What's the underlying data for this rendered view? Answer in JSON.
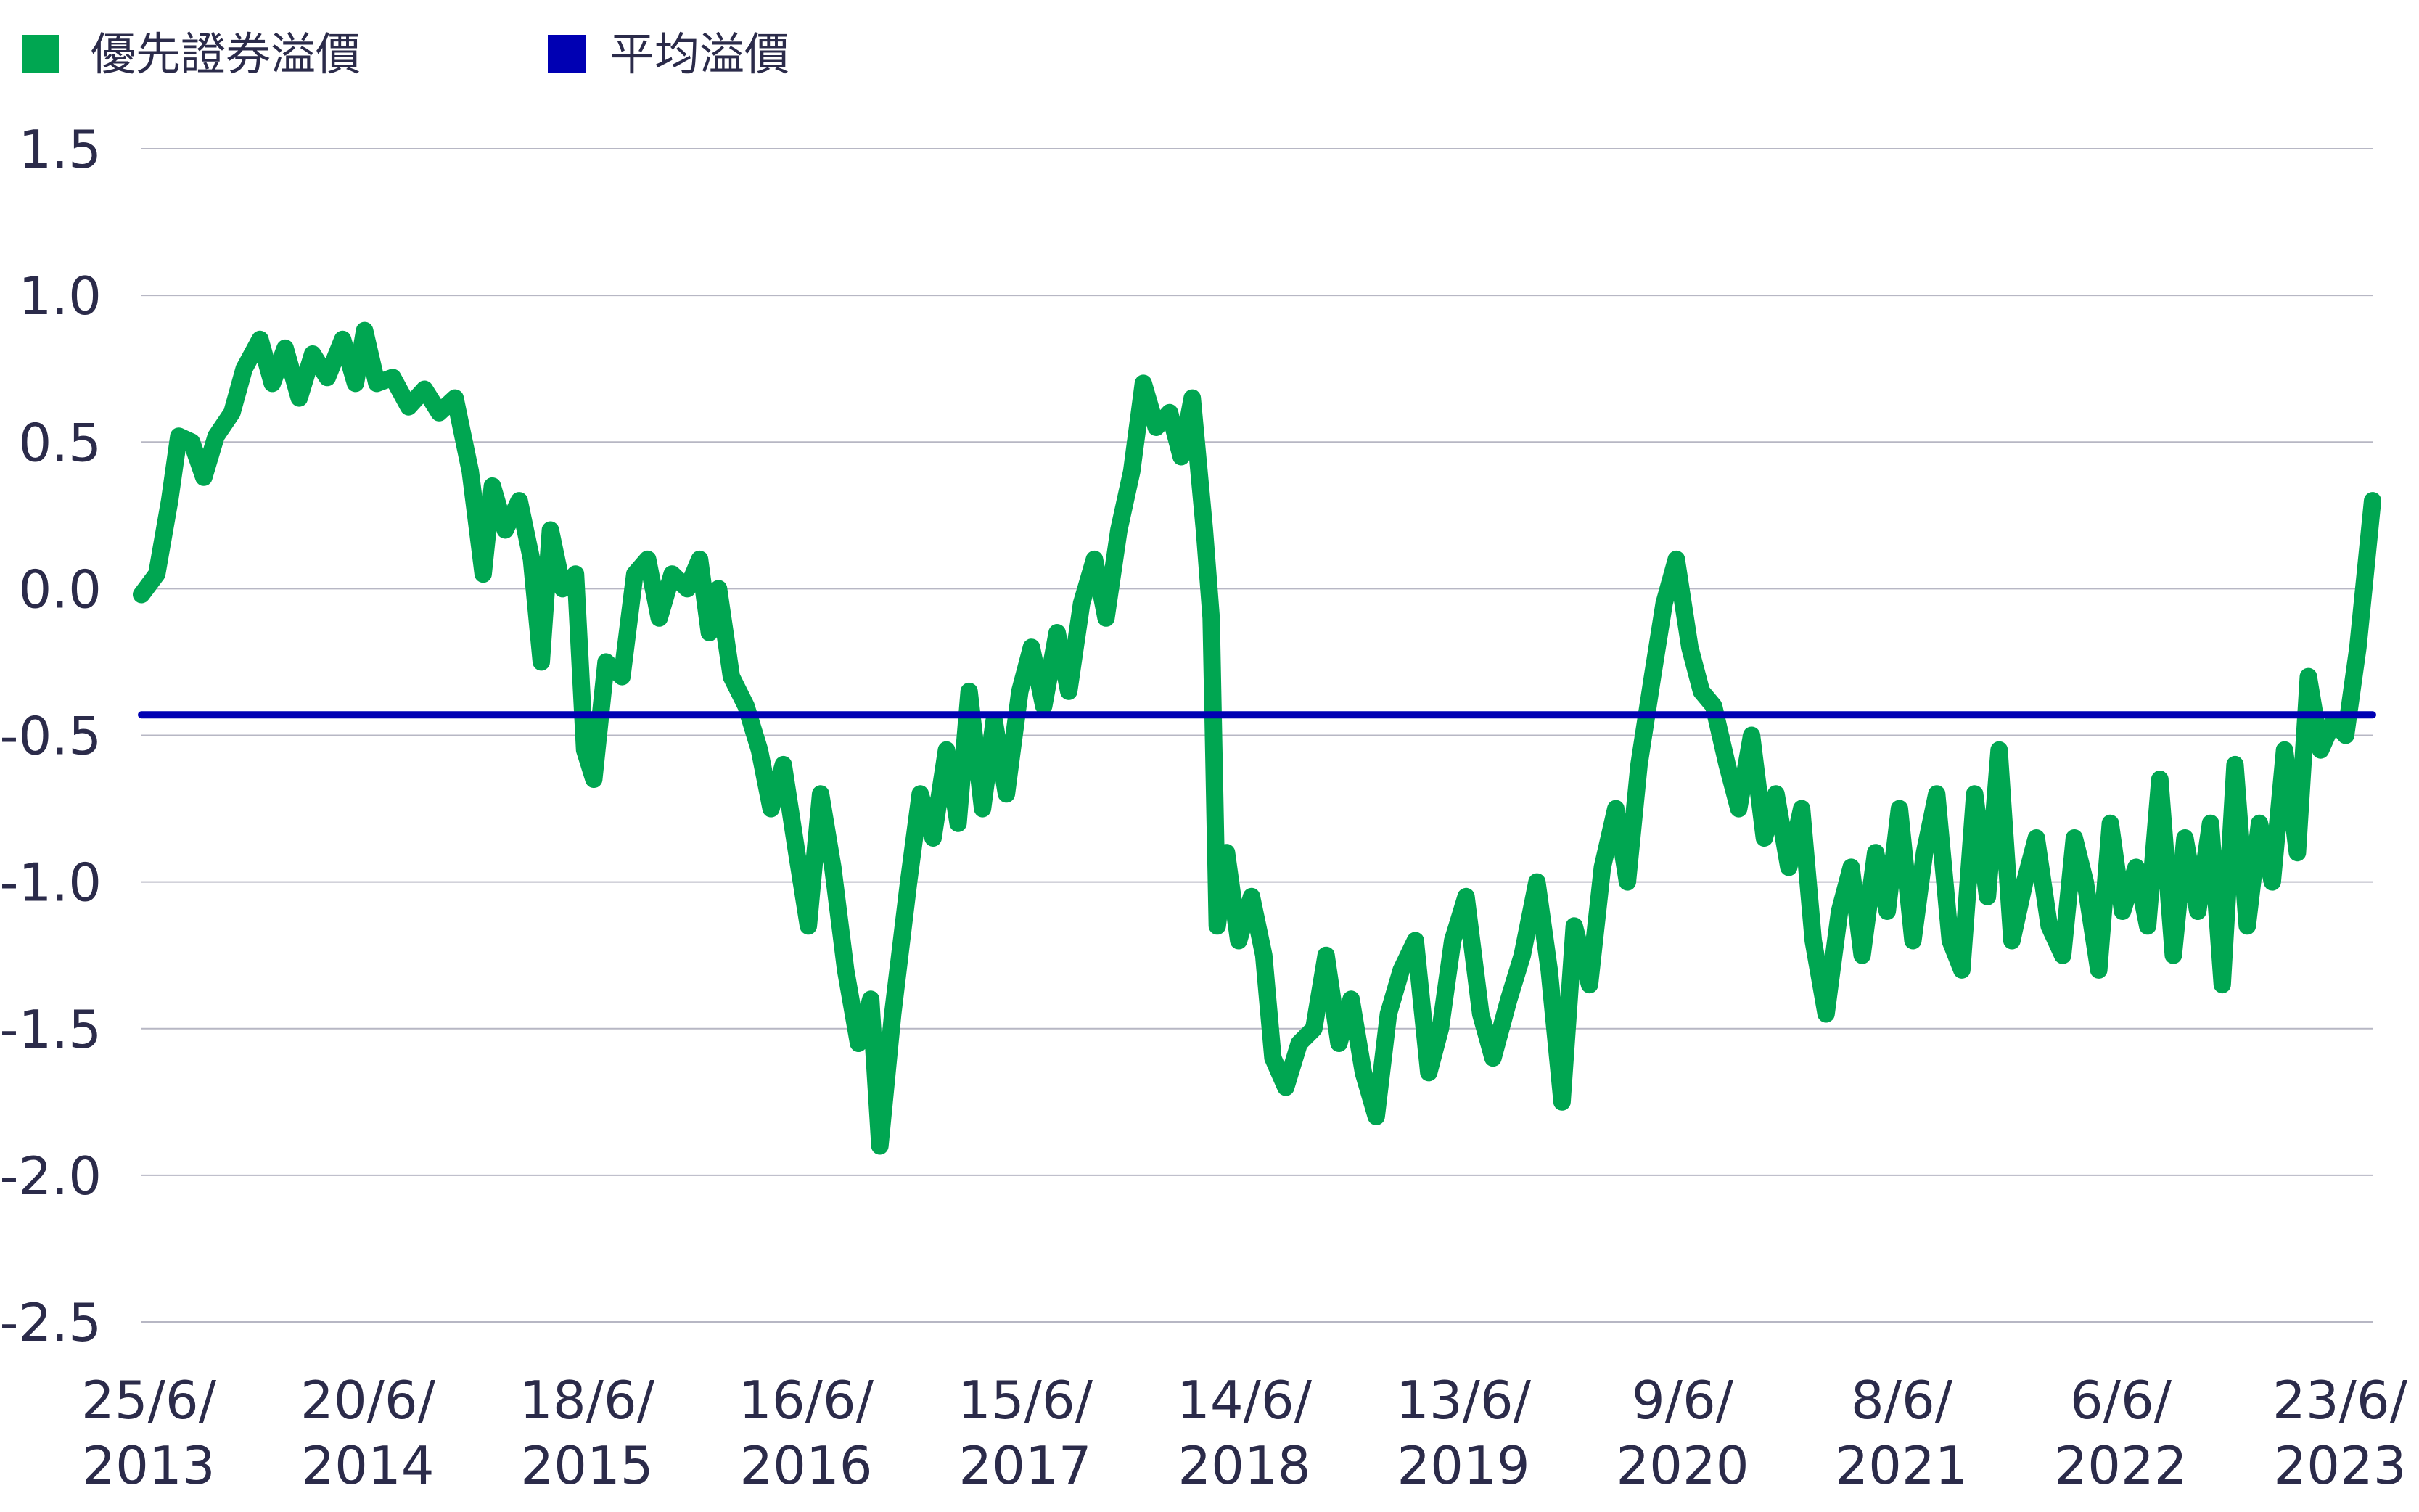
{
  "chart_data": {
    "type": "line",
    "title": "",
    "xlabel": "",
    "ylabel": "",
    "ylim": [
      -2.5,
      1.5
    ],
    "yticks": [
      "1.5",
      "1.0",
      "0.5",
      "0.0",
      "-0.5",
      "-1.0",
      "-1.5",
      "-2.0",
      "-2.5"
    ],
    "xticks": [
      {
        "line1": "25/6/",
        "line2": "2013"
      },
      {
        "line1": "20/6/",
        "line2": "2014"
      },
      {
        "line1": "18/6/",
        "line2": "2015"
      },
      {
        "line1": "16/6/",
        "line2": "2016"
      },
      {
        "line1": "15/6/",
        "line2": "2017"
      },
      {
        "line1": "14/6/",
        "line2": "2018"
      },
      {
        "line1": "13/6/",
        "line2": "2019"
      },
      {
        "line1": "9/6/",
        "line2": "2020"
      },
      {
        "line1": "8/6/",
        "line2": "2021"
      },
      {
        "line1": "6/6/",
        "line2": "2022"
      },
      {
        "line1": "23/6/",
        "line2": "2023"
      }
    ],
    "grid": true,
    "legend_position": "top-left",
    "series": [
      {
        "name": "優先證券溢價",
        "color": "#00a651",
        "points": [
          [
            "2013-06-25",
            -0.02
          ],
          [
            "2013-07-20",
            0.05
          ],
          [
            "2013-08-10",
            0.3
          ],
          [
            "2013-08-25",
            0.52
          ],
          [
            "2013-09-15",
            0.5
          ],
          [
            "2013-10-05",
            0.38
          ],
          [
            "2013-10-25",
            0.52
          ],
          [
            "2013-11-20",
            0.6
          ],
          [
            "2013-12-10",
            0.75
          ],
          [
            "2014-01-05",
            0.85
          ],
          [
            "2014-01-25",
            0.7
          ],
          [
            "2014-02-15",
            0.82
          ],
          [
            "2014-03-10",
            0.65
          ],
          [
            "2014-04-01",
            0.8
          ],
          [
            "2014-04-25",
            0.72
          ],
          [
            "2014-05-20",
            0.85
          ],
          [
            "2014-06-10",
            0.7
          ],
          [
            "2014-06-25",
            0.88
          ],
          [
            "2014-07-15",
            0.7
          ],
          [
            "2014-08-10",
            0.72
          ],
          [
            "2014-09-05",
            0.62
          ],
          [
            "2014-10-01",
            0.68
          ],
          [
            "2014-10-25",
            0.6
          ],
          [
            "2014-11-20",
            0.65
          ],
          [
            "2014-12-15",
            0.4
          ],
          [
            "2015-01-05",
            0.05
          ],
          [
            "2015-01-20",
            0.35
          ],
          [
            "2015-02-10",
            0.2
          ],
          [
            "2015-03-05",
            0.3
          ],
          [
            "2015-03-25",
            0.1
          ],
          [
            "2015-04-10",
            -0.25
          ],
          [
            "2015-04-25",
            0.2
          ],
          [
            "2015-05-15",
            0.0
          ],
          [
            "2015-06-05",
            0.05
          ],
          [
            "2015-06-20",
            -0.55
          ],
          [
            "2015-07-05",
            -0.65
          ],
          [
            "2015-07-25",
            -0.25
          ],
          [
            "2015-08-20",
            -0.3
          ],
          [
            "2015-09-10",
            0.05
          ],
          [
            "2015-10-01",
            0.1
          ],
          [
            "2015-10-20",
            -0.1
          ],
          [
            "2015-11-10",
            0.05
          ],
          [
            "2015-12-05",
            0.0
          ],
          [
            "2015-12-25",
            0.1
          ],
          [
            "2016-01-10",
            -0.15
          ],
          [
            "2016-01-25",
            0.0
          ],
          [
            "2016-02-15",
            -0.3
          ],
          [
            "2016-03-10",
            -0.4
          ],
          [
            "2016-04-01",
            -0.55
          ],
          [
            "2016-04-20",
            -0.75
          ],
          [
            "2016-05-10",
            -0.6
          ],
          [
            "2016-06-01",
            -0.9
          ],
          [
            "2016-06-20",
            -1.15
          ],
          [
            "2016-07-10",
            -0.7
          ],
          [
            "2016-07-30",
            -0.95
          ],
          [
            "2016-08-20",
            -1.3
          ],
          [
            "2016-09-10",
            -1.55
          ],
          [
            "2016-09-30",
            -1.4
          ],
          [
            "2016-10-15",
            -1.9
          ],
          [
            "2016-11-05",
            -1.45
          ],
          [
            "2016-12-01",
            -1.0
          ],
          [
            "2016-12-20",
            -0.7
          ],
          [
            "2017-01-10",
            -0.85
          ],
          [
            "2017-02-01",
            -0.55
          ],
          [
            "2017-02-20",
            -0.8
          ],
          [
            "2017-03-10",
            -0.35
          ],
          [
            "2017-04-01",
            -0.75
          ],
          [
            "2017-04-20",
            -0.45
          ],
          [
            "2017-05-10",
            -0.7
          ],
          [
            "2017-06-01",
            -0.35
          ],
          [
            "2017-06-20",
            -0.2
          ],
          [
            "2017-07-10",
            -0.4
          ],
          [
            "2017-08-01",
            -0.15
          ],
          [
            "2017-08-20",
            -0.35
          ],
          [
            "2017-09-10",
            -0.05
          ],
          [
            "2017-10-01",
            0.1
          ],
          [
            "2017-10-20",
            -0.1
          ],
          [
            "2017-11-10",
            0.2
          ],
          [
            "2017-12-01",
            0.4
          ],
          [
            "2017-12-20",
            0.7
          ],
          [
            "2018-01-10",
            0.55
          ],
          [
            "2018-02-01",
            0.6
          ],
          [
            "2018-02-20",
            0.45
          ],
          [
            "2018-03-10",
            0.65
          ],
          [
            "2018-03-30",
            0.2
          ],
          [
            "2018-04-10",
            -0.1
          ],
          [
            "2018-04-20",
            -1.15
          ],
          [
            "2018-05-05",
            -0.9
          ],
          [
            "2018-05-25",
            -1.2
          ],
          [
            "2018-06-15",
            -1.05
          ],
          [
            "2018-07-05",
            -1.25
          ],
          [
            "2018-07-20",
            -1.6
          ],
          [
            "2018-08-10",
            -1.7
          ],
          [
            "2018-09-01",
            -1.55
          ],
          [
            "2018-09-25",
            -1.5
          ],
          [
            "2018-10-15",
            -1.25
          ],
          [
            "2018-11-05",
            -1.55
          ],
          [
            "2018-11-25",
            -1.4
          ],
          [
            "2018-12-15",
            -1.65
          ],
          [
            "2019-01-05",
            -1.8
          ],
          [
            "2019-01-25",
            -1.45
          ],
          [
            "2019-02-15",
            -1.3
          ],
          [
            "2019-03-10",
            -1.2
          ],
          [
            "2019-04-01",
            -1.65
          ],
          [
            "2019-04-20",
            -1.5
          ],
          [
            "2019-05-10",
            -1.2
          ],
          [
            "2019-06-01",
            -1.05
          ],
          [
            "2019-06-25",
            -1.45
          ],
          [
            "2019-07-15",
            -1.6
          ],
          [
            "2019-08-10",
            -1.4
          ],
          [
            "2019-09-01",
            -1.25
          ],
          [
            "2019-09-25",
            -1.0
          ],
          [
            "2019-10-15",
            -1.3
          ],
          [
            "2019-11-05",
            -1.75
          ],
          [
            "2019-11-25",
            -1.15
          ],
          [
            "2019-12-20",
            -1.35
          ],
          [
            "2020-01-10",
            -0.95
          ],
          [
            "2020-02-01",
            -0.75
          ],
          [
            "2020-02-20",
            -1.0
          ],
          [
            "2020-03-10",
            -0.6
          ],
          [
            "2020-04-01",
            -0.3
          ],
          [
            "2020-04-20",
            -0.05
          ],
          [
            "2020-05-10",
            0.1
          ],
          [
            "2020-06-01",
            -0.2
          ],
          [
            "2020-06-20",
            -0.35
          ],
          [
            "2020-07-10",
            -0.4
          ],
          [
            "2020-08-01",
            -0.6
          ],
          [
            "2020-08-20",
            -0.75
          ],
          [
            "2020-09-10",
            -0.5
          ],
          [
            "2020-10-01",
            -0.85
          ],
          [
            "2020-10-20",
            -0.7
          ],
          [
            "2020-11-10",
            -0.95
          ],
          [
            "2020-12-01",
            -0.75
          ],
          [
            "2020-12-20",
            -1.2
          ],
          [
            "2021-01-10",
            -1.45
          ],
          [
            "2021-02-01",
            -1.1
          ],
          [
            "2021-02-20",
            -0.95
          ],
          [
            "2021-03-10",
            -1.25
          ],
          [
            "2021-04-01",
            -0.9
          ],
          [
            "2021-04-20",
            -1.1
          ],
          [
            "2021-05-10",
            -0.75
          ],
          [
            "2021-06-01",
            -1.2
          ],
          [
            "2021-06-20",
            -0.9
          ],
          [
            "2021-07-10",
            -0.7
          ],
          [
            "2021-08-01",
            -1.2
          ],
          [
            "2021-08-20",
            -1.3
          ],
          [
            "2021-09-10",
            -0.7
          ],
          [
            "2021-10-01",
            -1.05
          ],
          [
            "2021-10-20",
            -0.55
          ],
          [
            "2021-11-10",
            -1.2
          ],
          [
            "2021-12-01",
            -1.0
          ],
          [
            "2021-12-20",
            -0.85
          ],
          [
            "2022-01-10",
            -1.15
          ],
          [
            "2022-02-01",
            -1.25
          ],
          [
            "2022-02-20",
            -0.85
          ],
          [
            "2022-03-10",
            -1.0
          ],
          [
            "2022-04-01",
            -1.3
          ],
          [
            "2022-04-20",
            -0.8
          ],
          [
            "2022-05-10",
            -1.1
          ],
          [
            "2022-06-01",
            -0.95
          ],
          [
            "2022-06-20",
            -1.15
          ],
          [
            "2022-07-10",
            -0.65
          ],
          [
            "2022-08-01",
            -1.25
          ],
          [
            "2022-08-20",
            -0.85
          ],
          [
            "2022-09-10",
            -1.1
          ],
          [
            "2022-10-01",
            -0.8
          ],
          [
            "2022-10-20",
            -1.35
          ],
          [
            "2022-11-10",
            -0.6
          ],
          [
            "2022-11-30",
            -1.15
          ],
          [
            "2022-12-20",
            -0.8
          ],
          [
            "2023-01-10",
            -1.0
          ],
          [
            "2023-01-30",
            -0.55
          ],
          [
            "2023-02-20",
            -0.9
          ],
          [
            "2023-03-10",
            -0.3
          ],
          [
            "2023-03-30",
            -0.55
          ],
          [
            "2023-04-20",
            -0.45
          ],
          [
            "2023-05-10",
            -0.5
          ],
          [
            "2023-05-30",
            -0.2
          ],
          [
            "2023-06-23",
            0.3
          ]
        ]
      },
      {
        "name": "平均溢價",
        "color": "#0000b3",
        "points": [
          [
            "2013-06-25",
            -0.43
          ],
          [
            "2023-06-23",
            -0.43
          ]
        ]
      }
    ]
  }
}
